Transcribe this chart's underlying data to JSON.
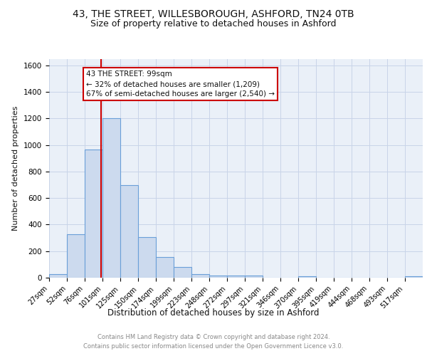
{
  "title_line1": "43, THE STREET, WILLESBOROUGH, ASHFORD, TN24 0TB",
  "title_line2": "Size of property relative to detached houses in Ashford",
  "xlabel": "Distribution of detached houses by size in Ashford",
  "ylabel": "Number of detached properties",
  "footnote1": "Contains HM Land Registry data © Crown copyright and database right 2024.",
  "footnote2": "Contains public sector information licensed under the Open Government Licence v3.0.",
  "bar_labels": [
    "27sqm",
    "52sqm",
    "76sqm",
    "101sqm",
    "125sqm",
    "150sqm",
    "174sqm",
    "199sqm",
    "223sqm",
    "248sqm",
    "272sqm",
    "297sqm",
    "321sqm",
    "346sqm",
    "370sqm",
    "395sqm",
    "419sqm",
    "444sqm",
    "468sqm",
    "493sqm",
    "517sqm"
  ],
  "bar_values": [
    28,
    325,
    965,
    1200,
    700,
    305,
    155,
    78,
    28,
    18,
    15,
    15,
    0,
    0,
    12,
    0,
    0,
    0,
    0,
    0,
    12
  ],
  "bar_color": "#ccdaee",
  "bar_edge_color": "#6a9fd8",
  "annotation_text": "43 THE STREET: 99sqm\n← 32% of detached houses are smaller (1,209)\n67% of semi-detached houses are larger (2,540) →",
  "red_line_x": 99,
  "bin_edges": [
    27,
    52,
    76,
    101,
    125,
    150,
    174,
    199,
    223,
    248,
    272,
    297,
    321,
    346,
    370,
    395,
    419,
    444,
    468,
    493,
    517,
    542
  ],
  "ylim": [
    0,
    1650
  ],
  "yticks": [
    0,
    200,
    400,
    600,
    800,
    1000,
    1200,
    1400,
    1600
  ],
  "annotation_box_color": "#ffffff",
  "annotation_box_edge": "#cc0000",
  "red_line_color": "#cc0000",
  "grid_color": "#c8d4e8",
  "background_color": "#eaf0f8",
  "title1_fontsize": 10,
  "title2_fontsize": 9,
  "ylabel_fontsize": 8,
  "xlabel_fontsize": 8.5,
  "tick_fontsize": 7,
  "footnote_fontsize": 6,
  "ann_fontsize": 7.5
}
